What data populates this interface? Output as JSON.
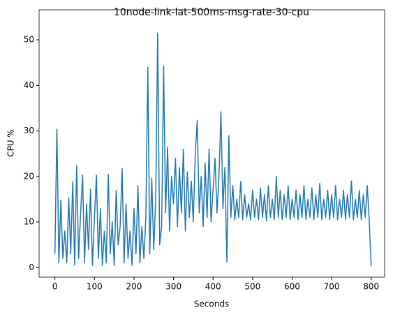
{
  "chart_data": {
    "type": "line",
    "title": "10node-link-lat-500ms-msg-rate-30-cpu",
    "x_label": "Seconds",
    "y_label": "CPU %",
    "x": [
      0,
      5,
      10,
      15,
      20,
      25,
      30,
      35,
      40,
      45,
      50,
      55,
      60,
      65,
      70,
      75,
      80,
      85,
      90,
      95,
      100,
      105,
      110,
      115,
      120,
      125,
      130,
      135,
      140,
      145,
      150,
      155,
      160,
      165,
      170,
      175,
      180,
      185,
      190,
      195,
      200,
      205,
      210,
      215,
      220,
      225,
      230,
      235,
      240,
      245,
      250,
      255,
      260,
      265,
      270,
      275,
      280,
      285,
      290,
      295,
      300,
      305,
      310,
      315,
      320,
      325,
      330,
      335,
      340,
      345,
      350,
      355,
      360,
      365,
      370,
      375,
      380,
      385,
      390,
      395,
      400,
      405,
      410,
      415,
      420,
      425,
      430,
      435,
      440,
      445,
      450,
      455,
      460,
      465,
      470,
      475,
      480,
      485,
      490,
      495,
      500,
      505,
      510,
      515,
      520,
      525,
      530,
      535,
      540,
      545,
      550,
      555,
      560,
      565,
      570,
      575,
      580,
      585,
      590,
      595,
      600,
      605,
      610,
      615,
      620,
      625,
      630,
      635,
      640,
      645,
      650,
      655,
      660,
      665,
      670,
      675,
      680,
      685,
      690,
      695,
      700,
      705,
      710,
      715,
      720,
      725,
      730,
      735,
      740,
      745,
      750,
      755,
      760,
      765,
      770,
      775,
      780,
      785,
      790,
      795,
      800
    ],
    "series": [
      {
        "name": "cpu",
        "color": "#1f77b4",
        "values": [
          3,
          30.4,
          1,
          14.8,
          2,
          8,
          1,
          15.3,
          3,
          18.8,
          0.5,
          22.4,
          2,
          12,
          20.3,
          1,
          14,
          4,
          17.2,
          0.5,
          11,
          20.3,
          2,
          13,
          0.5,
          8,
          1,
          20.5,
          3,
          10,
          0.5,
          17,
          5,
          9,
          21.7,
          1,
          14,
          2,
          8,
          0.5,
          13,
          3,
          18,
          1,
          9,
          2,
          11,
          44,
          3,
          19.6,
          4,
          15,
          51.5,
          5,
          9,
          44.3,
          12,
          26.5,
          8,
          20,
          14,
          24,
          9,
          22,
          12,
          26,
          8,
          21,
          11,
          19,
          10,
          25,
          32.3,
          12,
          20,
          9,
          23,
          11,
          26,
          10,
          17,
          24,
          12,
          20,
          34.2,
          13,
          22,
          1.2,
          29,
          11,
          18,
          10.5,
          15,
          11,
          18.9,
          10.5,
          16,
          11,
          14,
          10.5,
          17,
          11,
          15,
          10.5,
          17.5,
          11,
          16,
          10.2,
          18,
          11,
          15,
          10.5,
          20,
          11,
          17,
          10.5,
          16,
          11,
          18,
          10.5,
          15,
          11,
          17,
          10.5,
          16,
          11,
          18,
          10.5,
          15,
          11,
          17.5,
          10.5,
          16,
          11,
          18.5,
          10.5,
          15,
          11,
          17,
          10.5,
          16,
          11,
          18,
          10.5,
          15,
          11,
          17,
          10.5,
          16,
          11,
          19,
          10.5,
          15,
          11,
          17,
          10.5,
          16,
          11,
          18,
          10.5,
          0.3
        ]
      }
    ],
    "xlim": [
      -40,
      834
    ],
    "ylim": [
      -2.1,
      56.6
    ],
    "xticks": [
      0,
      100,
      200,
      300,
      400,
      500,
      600,
      700,
      800
    ],
    "yticks": [
      0,
      10,
      20,
      30,
      40,
      50
    ]
  }
}
